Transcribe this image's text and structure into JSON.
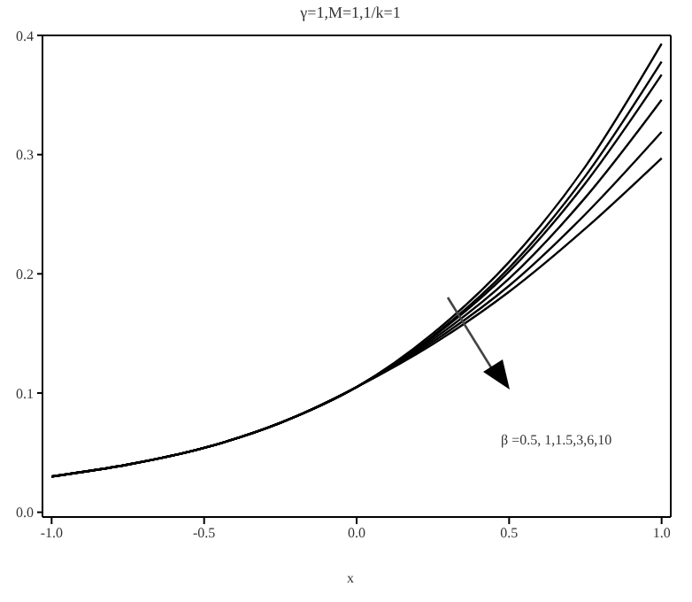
{
  "chart_data": {
    "type": "line",
    "title": "γ=1,M=1,1/k=1",
    "xlabel": "x",
    "x": [
      -1,
      -0.75,
      -0.5,
      -0.25,
      0,
      0.25,
      0.5,
      0.75,
      1
    ],
    "series": [
      {
        "color": "#000000",
        "values": [
          0.03,
          0.04,
          0.054,
          0.075,
          0.105,
          0.15,
          0.21,
          0.29,
          0.393
        ]
      },
      {
        "color": "#000000",
        "values": [
          0.03,
          0.04,
          0.054,
          0.075,
          0.105,
          0.148,
          0.205,
          0.282,
          0.378
        ]
      },
      {
        "color": "#000000",
        "values": [
          0.03,
          0.04,
          0.054,
          0.075,
          0.105,
          0.147,
          0.202,
          0.276,
          0.367
        ]
      },
      {
        "color": "#000000",
        "values": [
          0.03,
          0.04,
          0.054,
          0.075,
          0.105,
          0.145,
          0.196,
          0.264,
          0.346
        ]
      },
      {
        "color": "#000000",
        "values": [
          0.03,
          0.04,
          0.054,
          0.075,
          0.105,
          0.143,
          0.19,
          0.25,
          0.319
        ]
      },
      {
        "color": "#000000",
        "values": [
          0.03,
          0.04,
          0.054,
          0.075,
          0.105,
          0.141,
          0.185,
          0.238,
          0.297
        ]
      }
    ],
    "xlim": [
      -1.03,
      1.03
    ],
    "xticks": [
      {
        "value": -1,
        "label": "-1.0"
      },
      -0.5,
      {
        "value": 0,
        "label": "0.0"
      },
      0.5,
      {
        "value": 1,
        "label": "1.0"
      }
    ],
    "ylim": [
      -0.004,
      0.4
    ],
    "yticks": [
      {
        "value": 0,
        "label": "0.0"
      },
      0.1,
      0.2,
      0.3,
      0.4
    ],
    "annotations": [
      "β =0.5,  1,1.5,3,6,10"
    ],
    "marker": "none",
    "line_style": "solid"
  }
}
